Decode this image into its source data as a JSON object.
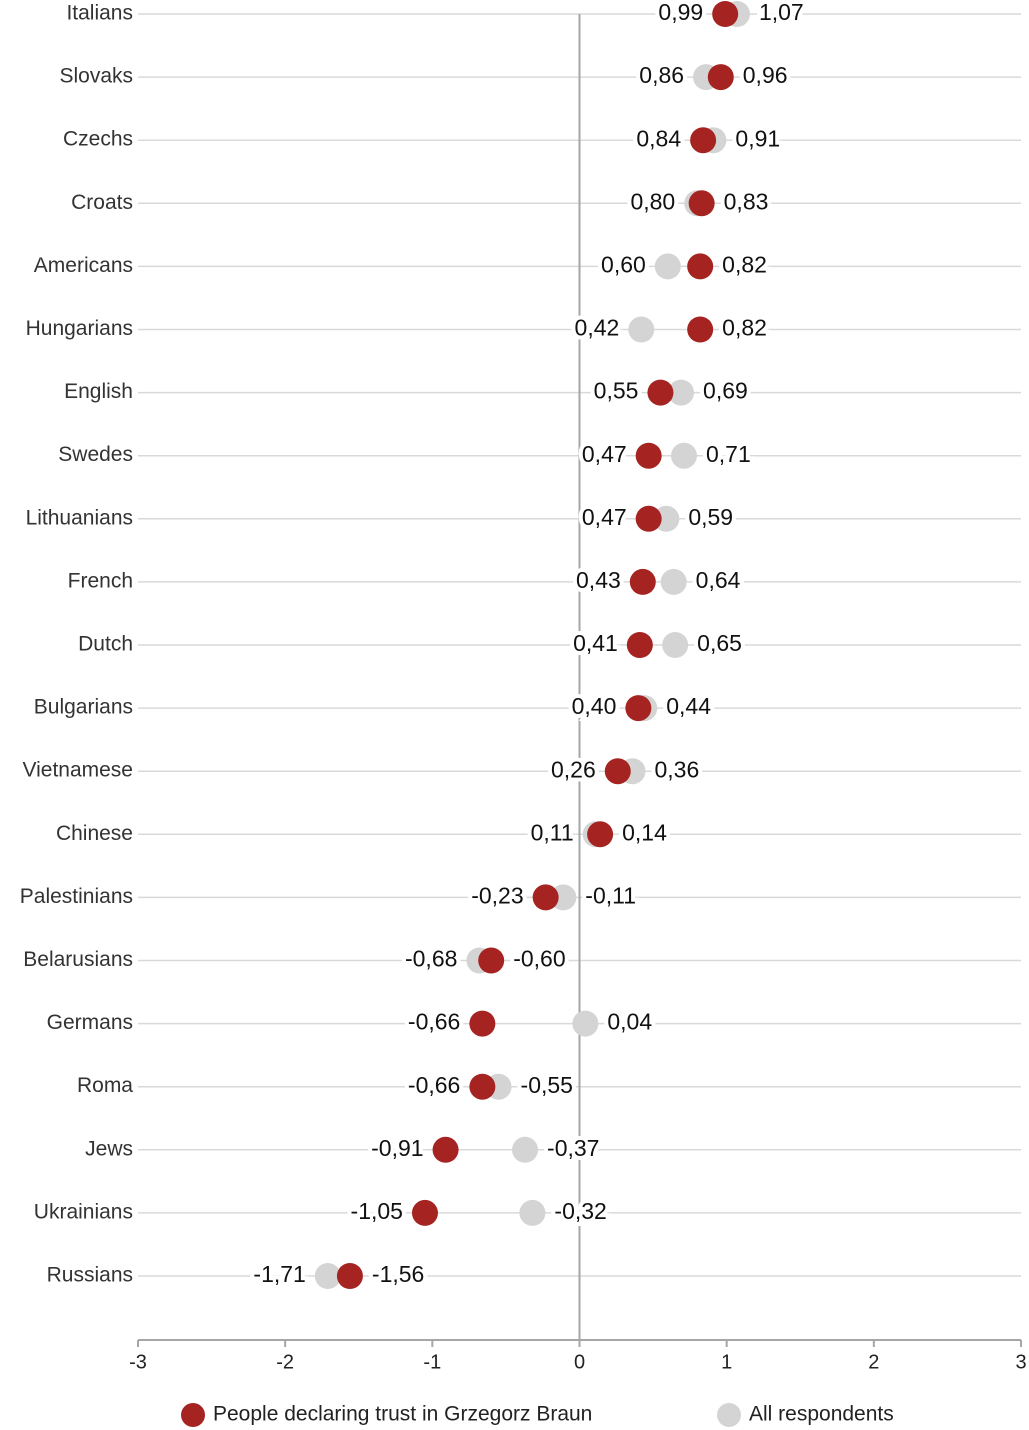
{
  "chart_data": {
    "type": "dot",
    "categories": [
      "Italians",
      "Slovaks",
      "Czechs",
      "Croats",
      "Americans",
      "Hungarians",
      "English",
      "Swedes",
      "Lithuanians",
      "French",
      "Dutch",
      "Bulgarians",
      "Vietnamese",
      "Chinese",
      "Palestinians",
      "Belarusians",
      "Germans",
      "Roma",
      "Jews",
      "Ukrainians",
      "Russians"
    ],
    "series": [
      {
        "name": "People declaring trust in Grzegorz Braun",
        "color": "#a52421",
        "values": [
          0.99,
          0.96,
          0.84,
          0.83,
          0.82,
          0.82,
          0.55,
          0.47,
          0.47,
          0.43,
          0.41,
          0.4,
          0.26,
          0.14,
          -0.23,
          -0.6,
          -0.66,
          -0.66,
          -0.91,
          -1.05,
          -1.56
        ],
        "value_labels": [
          "0,99",
          "0,96",
          "0,84",
          "0,83",
          "0,82",
          "0,82",
          "0,55",
          "0,47",
          "0,47",
          "0,43",
          "0,41",
          "0,40",
          "0,26",
          "0,14",
          "-0,23",
          "-0,60",
          "-0,66",
          "-0,66",
          "-0,91",
          "-1,05",
          "-1,56"
        ]
      },
      {
        "name": "All respondents",
        "color": "#d4d4d4",
        "values": [
          1.07,
          0.86,
          0.91,
          0.8,
          0.6,
          0.42,
          0.69,
          0.71,
          0.59,
          0.64,
          0.65,
          0.44,
          0.36,
          0.11,
          -0.11,
          -0.68,
          0.04,
          -0.55,
          -0.37,
          -0.32,
          -1.71
        ],
        "value_labels": [
          "1,07",
          "0,86",
          "0,91",
          "0,80",
          "0,60",
          "0,42",
          "0,69",
          "0,71",
          "0,59",
          "0,64",
          "0,65",
          "0,44",
          "0,36",
          "0,11",
          "-0,11",
          "-0,68",
          "0,04",
          "-0,55",
          "-0,37",
          "-0,32",
          "-1,71"
        ]
      }
    ],
    "xlim": [
      -3,
      3
    ],
    "xticks": [
      -3,
      -2,
      -1,
      0,
      1,
      2,
      3
    ],
    "legend": "bottom"
  }
}
